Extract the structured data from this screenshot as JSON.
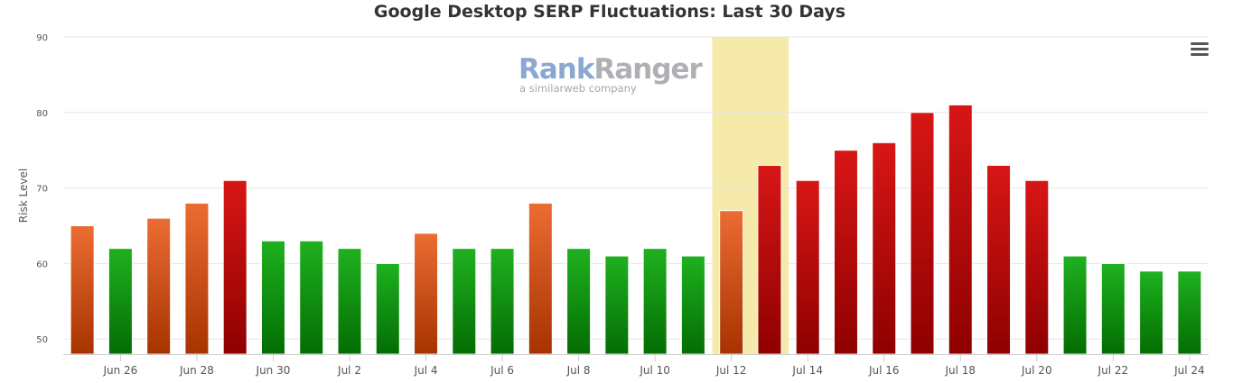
{
  "chart_data": {
    "type": "bar",
    "title": "Google Desktop SERP Fluctuations: Last 30 Days",
    "xlabel": "",
    "ylabel": "Risk Level",
    "ylim": [
      48,
      90
    ],
    "y_ticks": [
      50,
      60,
      70,
      80,
      90
    ],
    "grid": true,
    "categories": [
      "Jun 25",
      "Jun 26",
      "Jun 27",
      "Jun 28",
      "Jun 29",
      "Jun 30",
      "Jul 1",
      "Jul 2",
      "Jul 3",
      "Jul 4",
      "Jul 5",
      "Jul 6",
      "Jul 7",
      "Jul 8",
      "Jul 9",
      "Jul 10",
      "Jul 11",
      "Jul 12",
      "Jul 13",
      "Jul 14",
      "Jul 15",
      "Jul 16",
      "Jul 17",
      "Jul 18",
      "Jul 19",
      "Jul 20",
      "Jul 21",
      "Jul 22",
      "Jul 23",
      "Jul 24"
    ],
    "x_tick_labels": [
      "",
      "Jun 26",
      "",
      "Jun 28",
      "",
      "Jun 30",
      "",
      "Jul 2",
      "",
      "Jul 4",
      "",
      "Jul 6",
      "",
      "Jul 8",
      "",
      "Jul 10",
      "",
      "Jul 12",
      "",
      "Jul 14",
      "",
      "Jul 16",
      "",
      "Jul 18",
      "",
      "Jul 20",
      "",
      "Jul 22",
      "",
      "Jul 24"
    ],
    "values": [
      65,
      62,
      66,
      68,
      71,
      63,
      63,
      62,
      60,
      64,
      62,
      62,
      68,
      62,
      61,
      62,
      61,
      67,
      73,
      71,
      75,
      76,
      80,
      81,
      73,
      71,
      61,
      60,
      59,
      59
    ],
    "highlighted_range": [
      "Jul 12",
      "Jul 13"
    ],
    "colors": {
      "low": [
        "#1fb11f",
        "#036d03"
      ],
      "medium": [
        "#ec6c33",
        "#a63300"
      ],
      "high": [
        "#d81616",
        "#8e0000"
      ],
      "highlight": "#f5eaaa",
      "grid": "#e6e6e6",
      "axis": "#cccccc"
    },
    "thresholds": {
      "medium": 64,
      "high": 70
    }
  },
  "logo": {
    "name_part1": "Rank",
    "name_part2": "Ranger",
    "tagline": "a similarweb company"
  },
  "menu": {
    "icon": "hamburger-menu-icon"
  }
}
